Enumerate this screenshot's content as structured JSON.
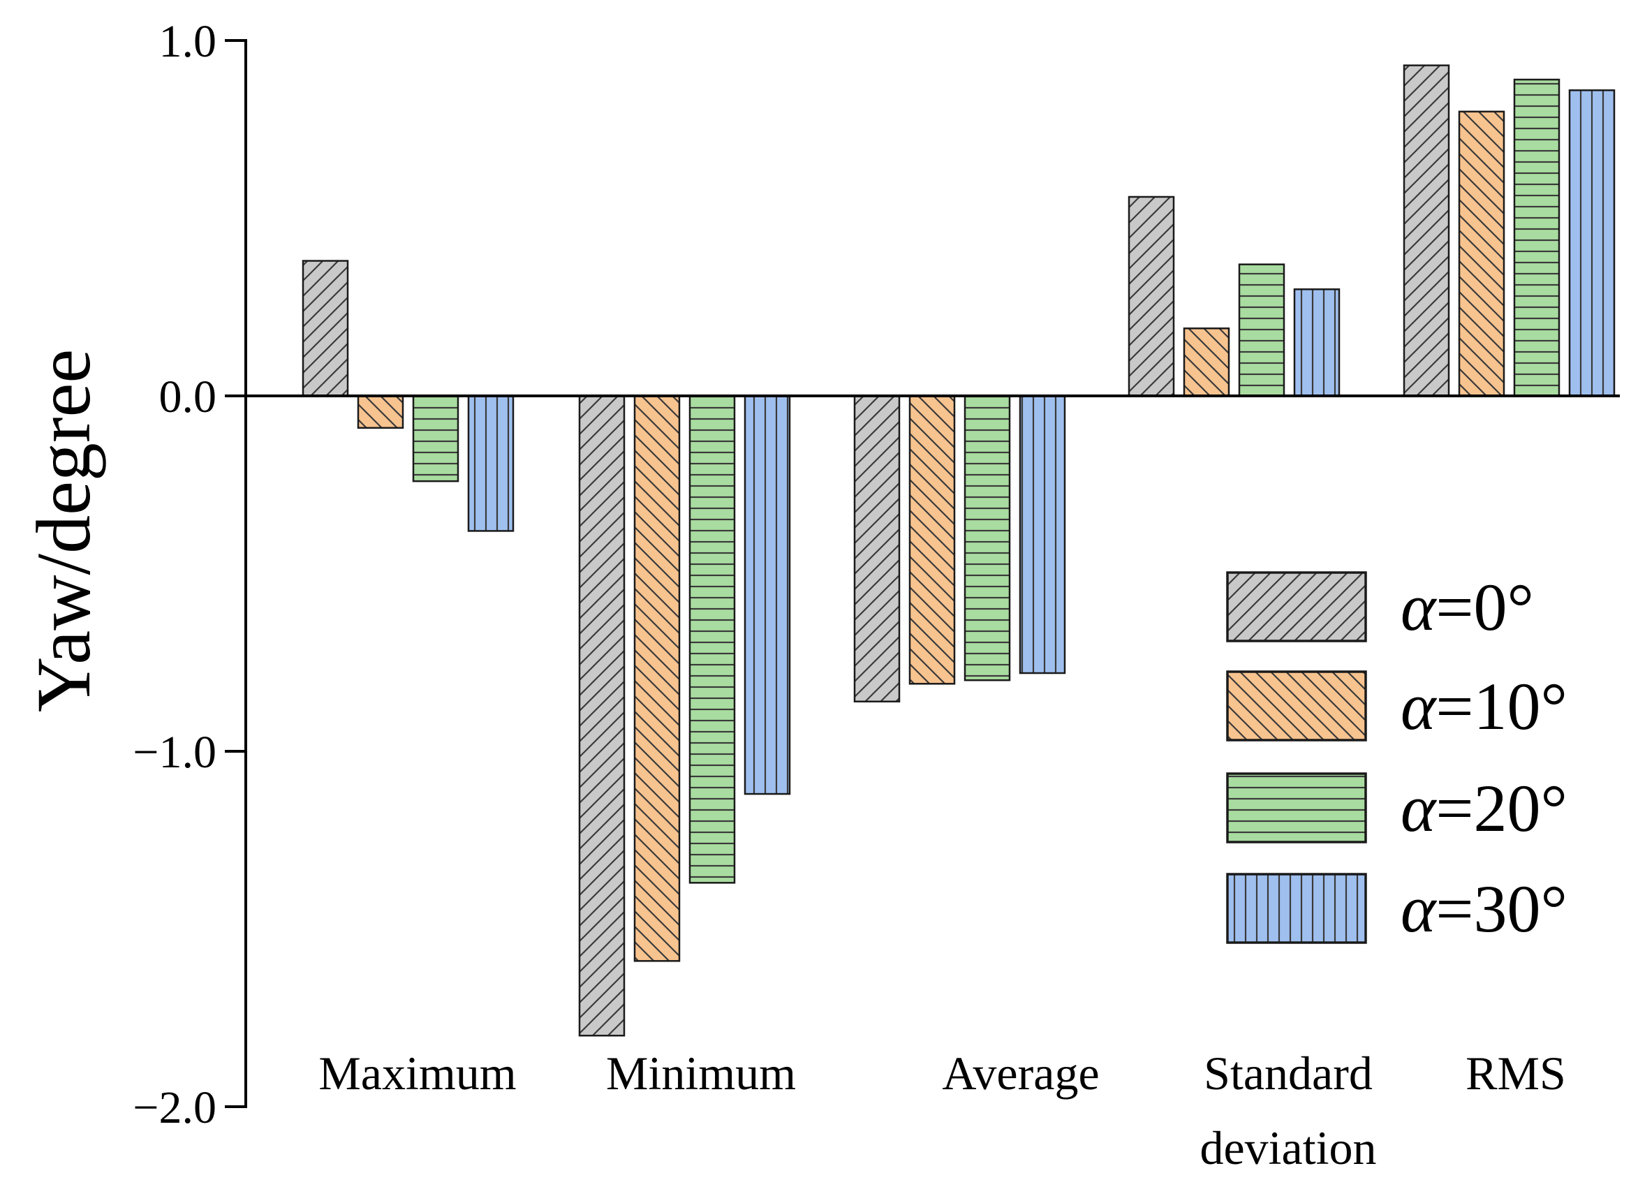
{
  "chart_data": {
    "type": "bar",
    "title": "",
    "xlabel": "",
    "ylabel": "Yaw/degree",
    "ylim": [
      -2.0,
      1.0
    ],
    "yticks": [
      {
        "value": 1.0,
        "label": "1.0"
      },
      {
        "value": 0.0,
        "label": "0.0"
      },
      {
        "value": -1.0,
        "label": "−1.0"
      },
      {
        "value": -2.0,
        "label": "−2.0"
      }
    ],
    "categories": [
      {
        "line1": "Maximum",
        "line2": ""
      },
      {
        "line1": "Minimum",
        "line2": ""
      },
      {
        "line1": "Average",
        "line2": ""
      },
      {
        "line1": "Standard",
        "line2": "deviation"
      },
      {
        "line1": "RMS",
        "line2": ""
      }
    ],
    "series": [
      {
        "name": "α=0°",
        "greek": "α",
        "rest": "=0°",
        "color": "#c9c9c9",
        "pattern": "diag-up",
        "values": [
          0.38,
          -1.8,
          -0.86,
          0.56,
          0.93
        ]
      },
      {
        "name": "α=10°",
        "greek": "α",
        "rest": "=10°",
        "color": "#f7c38f",
        "pattern": "diag-down",
        "values": [
          -0.09,
          -1.59,
          -0.81,
          0.19,
          0.8
        ]
      },
      {
        "name": "α=20°",
        "greek": "α",
        "rest": "=20°",
        "color": "#a9dca0",
        "pattern": "horizontal",
        "values": [
          -0.24,
          -1.37,
          -0.8,
          0.37,
          0.89
        ]
      },
      {
        "name": "α=30°",
        "greek": "α",
        "rest": "=30°",
        "color": "#9fc0ef",
        "pattern": "vertical",
        "values": [
          -0.38,
          -1.12,
          -0.78,
          0.3,
          0.86
        ]
      }
    ],
    "legend_position": "right",
    "grid": false
  }
}
